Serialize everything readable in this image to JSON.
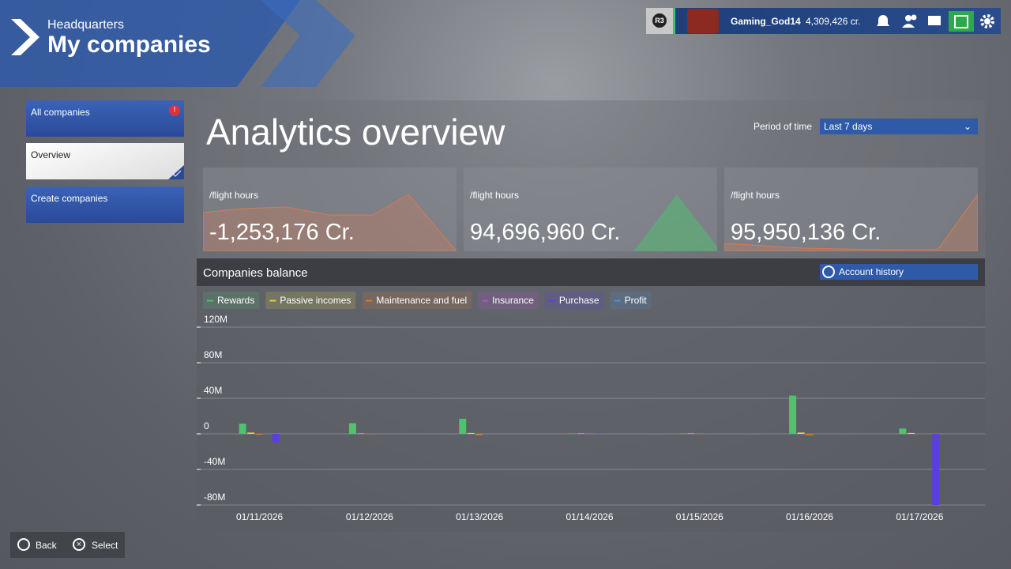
{
  "header": {
    "subtitle": "Headquarters",
    "title": "My companies"
  },
  "user": {
    "badge": "R3",
    "name": "Gaming_God14",
    "credits": "4,309,426 cr."
  },
  "menu": [
    {
      "label": "All companies"
    },
    {
      "label": "Overview"
    },
    {
      "label": "Create companies"
    }
  ],
  "page_title": "Analytics overview",
  "period": {
    "label": "Period of time",
    "value": "Last 7 days"
  },
  "cards": [
    {
      "label": "/flight hours",
      "value": "-1,253,176 Cr."
    },
    {
      "label": "/flight hours",
      "value": "94,696,960 Cr."
    },
    {
      "label": "/flight hours",
      "value": "95,950,136 Cr."
    }
  ],
  "balance_title": "Companies balance",
  "account_history": "Account history",
  "footer": {
    "back": "Back",
    "select": "Select"
  },
  "chart_data": {
    "type": "bar",
    "categories": [
      "01/11/2026",
      "01/12/2026",
      "01/13/2026",
      "01/14/2026",
      "01/15/2026",
      "01/16/2026",
      "01/17/2026"
    ],
    "series": [
      {
        "name": "Rewards",
        "color": "#4ec26e",
        "values": [
          11500000,
          12000000,
          17000000,
          500000,
          500000,
          43000000,
          6000000
        ]
      },
      {
        "name": "Passive incomes",
        "color": "#e0d040",
        "values": [
          1500000,
          500000,
          1000000,
          500000,
          500000,
          1500000,
          1000000
        ]
      },
      {
        "name": "Maintenance and fuel",
        "color": "#d87a30",
        "values": [
          -1000000,
          -500000,
          -1500000,
          500000,
          500000,
          -1500000,
          0
        ]
      },
      {
        "name": "Insurance",
        "color": "#b050d0",
        "values": [
          0,
          0,
          0,
          500000,
          500000,
          0,
          0
        ]
      },
      {
        "name": "Purchase",
        "color": "#5a3ee0",
        "values": [
          -10000000,
          0,
          0,
          0,
          0,
          0,
          -80000000
        ]
      },
      {
        "name": "Profit",
        "color": "#4a90d8",
        "values": [
          0,
          0,
          0,
          0,
          0,
          0,
          0
        ]
      }
    ],
    "ylim": [
      -80000000,
      120000000
    ],
    "yticks": [
      {
        "value": -80000000,
        "label": "-80M"
      },
      {
        "value": -40000000,
        "label": "-40M"
      },
      0,
      {
        "value": 40000000,
        "label": "40M"
      },
      {
        "value": 80000000,
        "label": "80M"
      },
      {
        "value": 120000000,
        "label": "120M"
      }
    ],
    "grid": true
  }
}
